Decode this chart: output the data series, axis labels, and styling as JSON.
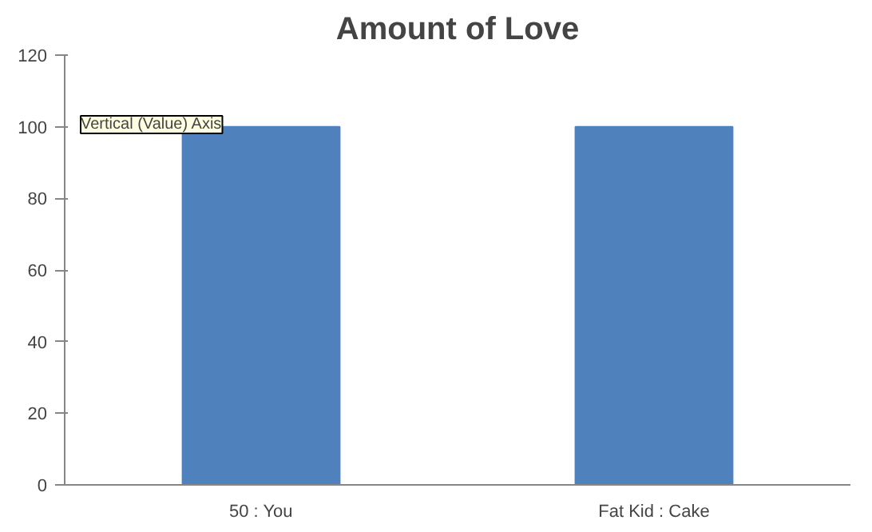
{
  "chart_data": {
    "type": "bar",
    "title": "Amount of Love",
    "categories": [
      "50 : You",
      "Fat Kid : Cake"
    ],
    "values": [
      100,
      100
    ],
    "color": "#4f81bd",
    "ylim": [
      0,
      120
    ],
    "yticks": [
      0,
      20,
      40,
      60,
      80,
      100,
      120
    ],
    "grid": false,
    "annotations": [
      "Vertical (Value) Axis"
    ]
  }
}
